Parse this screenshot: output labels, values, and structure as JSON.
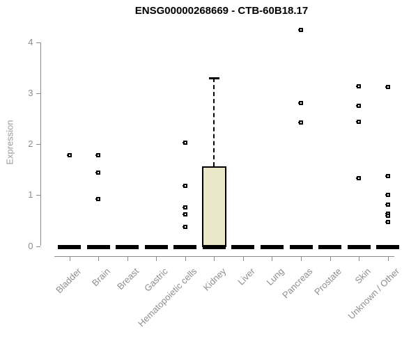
{
  "window": {
    "background": "#ffffff"
  },
  "chart_data": {
    "type": "boxplot",
    "title": "ENSG00000268669 - CTB-60B18.17",
    "ylabel": "Expression",
    "xlabel": "",
    "yticks": [
      0,
      1,
      2,
      3,
      4
    ],
    "ylim": [
      0,
      4.4
    ],
    "grid": false,
    "legend": null,
    "categories": [
      "Bladder",
      "Brain",
      "Breast",
      "Gastric",
      "Hematopoietic cells",
      "Kidney",
      "Liver",
      "Lung",
      "Pancreas",
      "Prostate",
      "Skin",
      "Unknown / Other"
    ],
    "series": [
      {
        "category": "Bladder",
        "median": 0,
        "q1": 0,
        "q3": 0,
        "whisker_low": 0,
        "whisker_high": 0,
        "outliers": [
          1.78
        ]
      },
      {
        "category": "Brain",
        "median": 0,
        "q1": 0,
        "q3": 0,
        "whisker_low": 0,
        "whisker_high": 0,
        "outliers": [
          1.78,
          1.44,
          0.92
        ]
      },
      {
        "category": "Breast",
        "median": 0,
        "q1": 0,
        "q3": 0,
        "whisker_low": 0,
        "whisker_high": 0,
        "outliers": []
      },
      {
        "category": "Gastric",
        "median": 0,
        "q1": 0,
        "q3": 0,
        "whisker_low": 0,
        "whisker_high": 0,
        "outliers": []
      },
      {
        "category": "Hematopoietic cells",
        "median": 0,
        "q1": 0,
        "q3": 0,
        "whisker_low": 0,
        "whisker_high": 0,
        "outliers": [
          2.03,
          1.19,
          0.76,
          0.62,
          0.37
        ]
      },
      {
        "category": "Kidney",
        "median": 0,
        "q1": 0,
        "q3": 1.56,
        "whisker_low": 0,
        "whisker_high": 3.3,
        "outliers": []
      },
      {
        "category": "Liver",
        "median": 0,
        "q1": 0,
        "q3": 0,
        "whisker_low": 0,
        "whisker_high": 0,
        "outliers": []
      },
      {
        "category": "Lung",
        "median": 0,
        "q1": 0,
        "q3": 0,
        "whisker_low": 0,
        "whisker_high": 0,
        "outliers": []
      },
      {
        "category": "Pancreas",
        "median": 0,
        "q1": 0,
        "q3": 0,
        "whisker_low": 0,
        "whisker_high": 0,
        "outliers": [
          4.25,
          2.81,
          2.43
        ]
      },
      {
        "category": "Prostate",
        "median": 0,
        "q1": 0,
        "q3": 0,
        "whisker_low": 0,
        "whisker_high": 0,
        "outliers": []
      },
      {
        "category": "Skin",
        "median": 0,
        "q1": 0,
        "q3": 0,
        "whisker_low": 0,
        "whisker_high": 0,
        "outliers": [
          3.14,
          2.75,
          2.44,
          1.34
        ]
      },
      {
        "category": "Unknown / Other",
        "median": 0,
        "q1": 0,
        "q3": 0,
        "whisker_low": 0,
        "whisker_high": 0,
        "outliers": [
          3.12,
          1.38,
          1.0,
          0.81,
          0.64,
          0.59,
          0.47
        ]
      }
    ],
    "colors": {
      "box_fill": "#ebe8ca",
      "box_border": "#000000",
      "median": "#000000",
      "marker": "#000000",
      "axis": "#8a8a8a",
      "tick_label": "#8e8e8e",
      "axis_label": "#9a9a9a",
      "title": "#000000"
    }
  }
}
